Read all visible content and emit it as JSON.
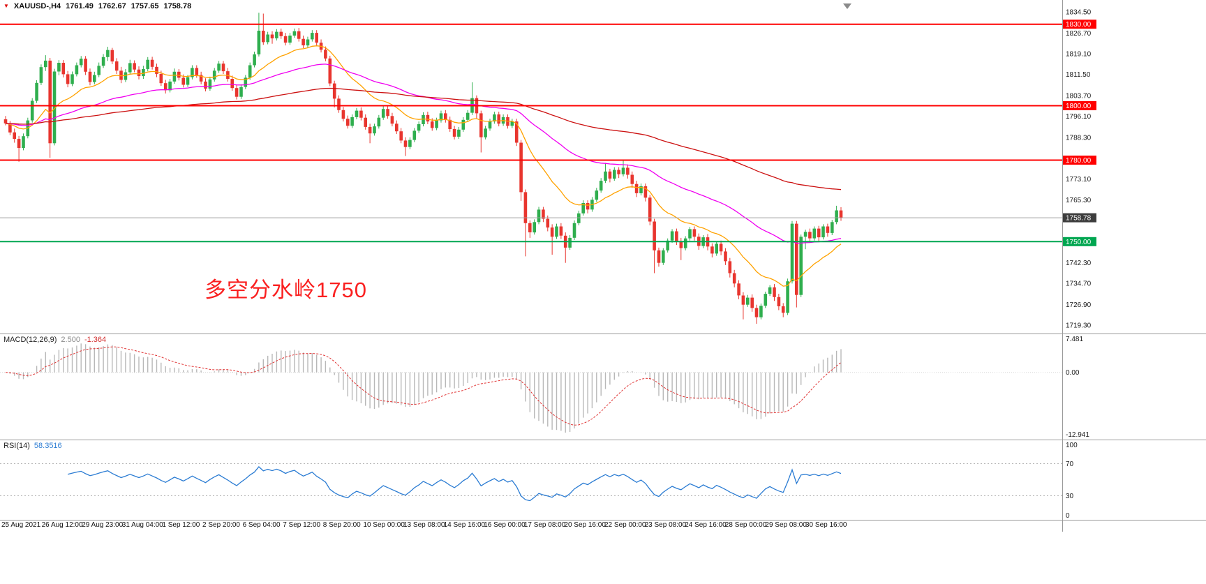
{
  "window": {
    "title": "XAUUSD-,H4",
    "bg": "#ffffff"
  },
  "header": {
    "icon": "▼",
    "symbol_period": "XAUUSD-,H4",
    "ohlc": {
      "open": "1761.49",
      "high": "1762.67",
      "low": "1757.65",
      "close": "1758.78"
    }
  },
  "annotation": {
    "text": "多空分水岭1750",
    "color": "#fa2020"
  },
  "colors": {
    "bull": "#2fae4e",
    "bear": "#e8352e",
    "ma_fast": "#ffa200",
    "ma_mid": "#f000f0",
    "ma_slow": "#cc1111",
    "resistance": "#ff0000",
    "support": "#00a650",
    "bid_line": "#a0a0a0",
    "bid_box": "#3d3d3d",
    "macd_hist": "#b8b8b8",
    "macd_signal": "#e03131",
    "rsi_line": "#2b7cd3",
    "separator": "#9a9a9a",
    "axis_text": "#1a1a1a"
  },
  "price_axis": {
    "labels": [
      "1834.50",
      "1826.70",
      "1819.10",
      "1811.50",
      "1803.70",
      "1796.10",
      "1788.30",
      "1773.10",
      "1765.30",
      "1742.30",
      "1734.70",
      "1726.90",
      "1719.30"
    ],
    "label_values": [
      1834.5,
      1826.7,
      1819.1,
      1811.5,
      1803.7,
      1796.1,
      1788.3,
      1773.1,
      1765.3,
      1742.3,
      1734.7,
      1726.9,
      1719.3
    ],
    "boxes": [
      {
        "label": "1830.00",
        "value": 1830.0,
        "bg": "#ff0000"
      },
      {
        "label": "1800.00",
        "value": 1800.0,
        "bg": "#ff0000"
      },
      {
        "label": "1780.00",
        "value": 1780.0,
        "bg": "#ff0000"
      },
      {
        "label": "1758.78",
        "value": 1758.78,
        "bg": "#3d3d3d"
      },
      {
        "label": "1750.00",
        "value": 1750.0,
        "bg": "#00a650"
      }
    ],
    "range": {
      "max": 1838.9,
      "min": 1716.2
    }
  },
  "indicators": {
    "macd": {
      "label": "MACD(12,26,9)",
      "value_main": "2.500",
      "value_signal": "-1.364",
      "fast": 12,
      "slow": 26,
      "signal": 9,
      "axis_labels": [
        "7.481",
        "0.00",
        "-12.941"
      ],
      "range": {
        "max": 7.481,
        "min": -12.941
      }
    },
    "rsi": {
      "label": "RSI(14)",
      "value": "58.3516",
      "period": 14,
      "axis_labels": [
        "100",
        "70",
        "30",
        "0"
      ],
      "levels": [
        70,
        30
      ],
      "range": {
        "max": 100,
        "min": 0
      }
    }
  },
  "time_axis": {
    "labels": [
      "25 Aug 2021",
      "26 Aug 12:00",
      "29 Aug 23:00",
      "31 Aug 04:00",
      "1 Sep 12:00",
      "2 Sep 20:00",
      "6 Sep 04:00",
      "7 Sep 12:00",
      "8 Sep 20:00",
      "10 Sep 00:00",
      "13 Sep 08:00",
      "14 Sep 16:00",
      "16 Sep 00:00",
      "17 Sep 08:00",
      "20 Sep 16:00",
      "22 Sep 00:00",
      "23 Sep 08:00",
      "24 Sep 16:00",
      "28 Sep 00:00",
      "29 Sep 08:00",
      "30 Sep 16:00"
    ]
  },
  "chart_data": {
    "type": "candlestick",
    "title": "XAUUSD-,H4",
    "symbol": "XAUUSD-",
    "timeframe": "H4",
    "current_price": 1758.78,
    "hlines": [
      {
        "value": 1830.0,
        "label": "1830.00",
        "color": "#ff0000"
      },
      {
        "value": 1800.0,
        "label": "1800.00",
        "color": "#ff0000"
      },
      {
        "value": 1780.0,
        "label": "1780.00",
        "color": "#ff0000"
      },
      {
        "value": 1750.0,
        "label": "1750.00",
        "color": "#00a650"
      }
    ],
    "overlays": [
      {
        "type": "ema",
        "period": 18,
        "color": "#ffa200"
      },
      {
        "type": "ema",
        "period": 55,
        "color": "#f000f0"
      },
      {
        "type": "ema",
        "period": 150,
        "color": "#cc1111"
      }
    ],
    "candles": [
      [
        1795.0,
        1796.2,
        1792.8,
        1793.5
      ],
      [
        1793.5,
        1794.4,
        1789.2,
        1790.2
      ],
      [
        1790.2,
        1791.6,
        1786.4,
        1787.8
      ],
      [
        1787.8,
        1788.9,
        1779.4,
        1784.5
      ],
      [
        1784.5,
        1789.8,
        1783.6,
        1788.8
      ],
      [
        1788.8,
        1795.6,
        1788.0,
        1794.6
      ],
      [
        1794.6,
        1802.8,
        1793.8,
        1801.8
      ],
      [
        1801.8,
        1809.4,
        1801.0,
        1808.4
      ],
      [
        1808.4,
        1815.2,
        1807.6,
        1814.2
      ],
      [
        1814.2,
        1818.6,
        1812.8,
        1816.6
      ],
      [
        1816.6,
        1817.6,
        1780.8,
        1786.2
      ],
      [
        1786.2,
        1813.6,
        1785.4,
        1812.6
      ],
      [
        1812.6,
        1816.8,
        1811.2,
        1815.8
      ],
      [
        1815.8,
        1816.8,
        1810.4,
        1811.6
      ],
      [
        1811.6,
        1812.8,
        1806.8,
        1808.0
      ],
      [
        1808.0,
        1812.6,
        1807.2,
        1811.6
      ],
      [
        1811.6,
        1815.9,
        1810.8,
        1814.9
      ],
      [
        1814.9,
        1818.3,
        1814.1,
        1817.3
      ],
      [
        1817.3,
        1818.3,
        1811.3,
        1812.5
      ],
      [
        1812.5,
        1813.7,
        1807.5,
        1808.7
      ],
      [
        1808.7,
        1812.5,
        1807.9,
        1811.3
      ],
      [
        1811.3,
        1815.9,
        1810.5,
        1814.7
      ],
      [
        1814.7,
        1819.0,
        1813.9,
        1817.9
      ],
      [
        1817.9,
        1821.7,
        1816.5,
        1820.5
      ],
      [
        1820.5,
        1821.3,
        1815.3,
        1816.3
      ],
      [
        1816.3,
        1817.5,
        1811.7,
        1812.9
      ],
      [
        1812.9,
        1814.3,
        1808.3,
        1809.5
      ],
      [
        1809.5,
        1813.5,
        1808.7,
        1812.3
      ],
      [
        1812.3,
        1816.9,
        1811.5,
        1815.7
      ],
      [
        1815.7,
        1816.7,
        1812.3,
        1813.3
      ],
      [
        1813.3,
        1814.5,
        1809.7,
        1810.9
      ],
      [
        1810.9,
        1814.7,
        1809.9,
        1813.5
      ],
      [
        1813.5,
        1817.9,
        1812.7,
        1816.9
      ],
      [
        1816.9,
        1818.0,
        1813.3,
        1814.3
      ],
      [
        1814.3,
        1815.5,
        1810.5,
        1811.7
      ],
      [
        1811.7,
        1812.9,
        1807.3,
        1808.3
      ],
      [
        1808.3,
        1809.5,
        1804.5,
        1805.7
      ],
      [
        1805.7,
        1809.9,
        1804.9,
        1808.9
      ],
      [
        1808.9,
        1813.7,
        1808.1,
        1812.5
      ],
      [
        1812.5,
        1813.5,
        1809.3,
        1810.3
      ],
      [
        1810.3,
        1811.5,
        1806.7,
        1807.7
      ],
      [
        1807.7,
        1811.3,
        1806.9,
        1810.5
      ],
      [
        1810.5,
        1814.9,
        1809.7,
        1813.9
      ],
      [
        1813.9,
        1814.9,
        1810.3,
        1811.3
      ],
      [
        1811.3,
        1812.5,
        1807.9,
        1808.9
      ],
      [
        1808.9,
        1810.1,
        1805.3,
        1806.3
      ],
      [
        1806.3,
        1810.7,
        1805.5,
        1809.7
      ],
      [
        1809.7,
        1813.9,
        1808.9,
        1812.9
      ],
      [
        1812.9,
        1816.5,
        1812.1,
        1815.5
      ],
      [
        1815.5,
        1816.5,
        1811.7,
        1812.7
      ],
      [
        1812.7,
        1813.9,
        1808.9,
        1809.9
      ],
      [
        1809.9,
        1811.1,
        1805.5,
        1806.5
      ],
      [
        1806.5,
        1807.7,
        1802.3,
        1803.3
      ],
      [
        1803.3,
        1807.9,
        1802.5,
        1806.9
      ],
      [
        1806.9,
        1811.3,
        1806.1,
        1810.3
      ],
      [
        1810.3,
        1815.9,
        1809.5,
        1814.9
      ],
      [
        1814.9,
        1819.9,
        1814.1,
        1818.9
      ],
      [
        1818.9,
        1834.2,
        1818.1,
        1827.6
      ],
      [
        1827.6,
        1833.9,
        1822.4,
        1823.4
      ],
      [
        1823.4,
        1827.2,
        1822.6,
        1826.2
      ],
      [
        1826.2,
        1827.4,
        1822.8,
        1824.8
      ],
      [
        1824.8,
        1828.2,
        1824.0,
        1827.2
      ],
      [
        1827.2,
        1828.4,
        1824.6,
        1825.6
      ],
      [
        1825.6,
        1826.8,
        1822.2,
        1823.2
      ],
      [
        1823.2,
        1826.8,
        1822.4,
        1825.8
      ],
      [
        1825.8,
        1828.4,
        1825.0,
        1827.4
      ],
      [
        1827.4,
        1828.6,
        1823.6,
        1824.6
      ],
      [
        1824.6,
        1825.8,
        1821.2,
        1822.2
      ],
      [
        1822.2,
        1825.4,
        1821.4,
        1824.4
      ],
      [
        1824.4,
        1827.8,
        1823.6,
        1826.8
      ],
      [
        1826.8,
        1827.8,
        1822.2,
        1823.2
      ],
      [
        1823.2,
        1824.4,
        1819.6,
        1820.6
      ],
      [
        1820.6,
        1821.8,
        1816.4,
        1817.4
      ],
      [
        1817.4,
        1818.4,
        1807.2,
        1808.2
      ],
      [
        1808.2,
        1809.2,
        1799.4,
        1802.6
      ],
      [
        1802.6,
        1803.8,
        1797.4,
        1798.4
      ],
      [
        1798.4,
        1799.6,
        1794.2,
        1795.2
      ],
      [
        1795.2,
        1796.4,
        1791.6,
        1792.6
      ],
      [
        1792.6,
        1796.8,
        1791.8,
        1795.8
      ],
      [
        1795.8,
        1799.2,
        1795.0,
        1798.2
      ],
      [
        1798.2,
        1799.4,
        1794.6,
        1795.6
      ],
      [
        1795.6,
        1796.8,
        1791.2,
        1792.2
      ],
      [
        1792.2,
        1793.4,
        1786.2,
        1789.8
      ],
      [
        1789.8,
        1793.4,
        1789.0,
        1792.4
      ],
      [
        1792.4,
        1796.6,
        1791.6,
        1795.6
      ],
      [
        1795.6,
        1799.8,
        1794.8,
        1798.8
      ],
      [
        1798.8,
        1799.8,
        1795.2,
        1796.2
      ],
      [
        1796.2,
        1797.4,
        1792.4,
        1793.4
      ],
      [
        1793.4,
        1794.6,
        1789.6,
        1790.6
      ],
      [
        1790.6,
        1791.8,
        1786.2,
        1787.2
      ],
      [
        1787.2,
        1788.4,
        1781.5,
        1784.8
      ],
      [
        1784.8,
        1788.4,
        1784.0,
        1787.4
      ],
      [
        1787.4,
        1791.8,
        1786.6,
        1790.8
      ],
      [
        1790.8,
        1794.2,
        1790.0,
        1793.2
      ],
      [
        1793.2,
        1797.6,
        1792.4,
        1796.6
      ],
      [
        1796.6,
        1797.8,
        1793.2,
        1794.2
      ],
      [
        1794.2,
        1795.4,
        1790.8,
        1791.8
      ],
      [
        1791.8,
        1795.6,
        1791.0,
        1794.6
      ],
      [
        1794.6,
        1798.2,
        1793.8,
        1797.2
      ],
      [
        1797.2,
        1798.4,
        1793.8,
        1794.8
      ],
      [
        1794.8,
        1796.0,
        1790.4,
        1791.4
      ],
      [
        1791.4,
        1792.6,
        1787.6,
        1788.6
      ],
      [
        1788.6,
        1792.2,
        1787.8,
        1791.2
      ],
      [
        1791.2,
        1795.8,
        1790.4,
        1794.8
      ],
      [
        1794.8,
        1798.4,
        1794.0,
        1797.4
      ],
      [
        1797.4,
        1808.6,
        1796.6,
        1802.8
      ],
      [
        1802.8,
        1803.8,
        1795.4,
        1797.2
      ],
      [
        1797.2,
        1798.2,
        1782.8,
        1788.4
      ],
      [
        1788.4,
        1792.6,
        1787.6,
        1791.6
      ],
      [
        1791.6,
        1795.2,
        1790.8,
        1794.2
      ],
      [
        1794.2,
        1797.8,
        1793.4,
        1796.8
      ],
      [
        1796.8,
        1797.8,
        1792.4,
        1793.4
      ],
      [
        1793.4,
        1796.8,
        1792.6,
        1795.8
      ],
      [
        1795.8,
        1796.8,
        1791.6,
        1792.6
      ],
      [
        1792.6,
        1795.2,
        1791.8,
        1794.2
      ],
      [
        1794.2,
        1795.2,
        1785.2,
        1786.4
      ],
      [
        1786.4,
        1787.4,
        1765.0,
        1768.2
      ],
      [
        1768.2,
        1769.2,
        1744.6,
        1756.8
      ],
      [
        1756.8,
        1757.8,
        1751.4,
        1753.4
      ],
      [
        1753.4,
        1758.2,
        1752.6,
        1757.2
      ],
      [
        1757.2,
        1762.8,
        1756.4,
        1761.8
      ],
      [
        1761.8,
        1762.8,
        1757.2,
        1758.4
      ],
      [
        1758.4,
        1759.6,
        1753.8,
        1755.2
      ],
      [
        1755.2,
        1756.4,
        1745.2,
        1751.8
      ],
      [
        1751.8,
        1756.6,
        1751.0,
        1755.6
      ],
      [
        1755.6,
        1756.8,
        1751.0,
        1752.2
      ],
      [
        1752.2,
        1753.4,
        1742.2,
        1747.8
      ],
      [
        1747.8,
        1752.4,
        1747.0,
        1751.4
      ],
      [
        1751.4,
        1757.8,
        1750.6,
        1756.8
      ],
      [
        1756.8,
        1761.4,
        1756.0,
        1760.4
      ],
      [
        1760.4,
        1765.2,
        1759.6,
        1764.2
      ],
      [
        1764.2,
        1765.2,
        1760.4,
        1761.8
      ],
      [
        1761.8,
        1766.4,
        1761.0,
        1765.4
      ],
      [
        1765.4,
        1769.8,
        1764.6,
        1768.8
      ],
      [
        1768.8,
        1773.4,
        1768.0,
        1772.4
      ],
      [
        1772.4,
        1779.0,
        1771.6,
        1775.8
      ],
      [
        1775.8,
        1776.8,
        1771.8,
        1773.2
      ],
      [
        1773.2,
        1777.4,
        1772.4,
        1776.4
      ],
      [
        1776.4,
        1777.4,
        1773.4,
        1774.8
      ],
      [
        1774.8,
        1780.1,
        1774.0,
        1777.2
      ],
      [
        1777.2,
        1778.4,
        1773.2,
        1774.6
      ],
      [
        1774.6,
        1775.8,
        1769.8,
        1771.2
      ],
      [
        1771.2,
        1772.4,
        1766.4,
        1767.8
      ],
      [
        1767.8,
        1771.4,
        1767.0,
        1770.4
      ],
      [
        1770.4,
        1771.4,
        1764.8,
        1766.2
      ],
      [
        1766.2,
        1767.2,
        1756.0,
        1757.4
      ],
      [
        1757.4,
        1758.4,
        1738.4,
        1746.8
      ],
      [
        1746.8,
        1747.8,
        1740.8,
        1742.2
      ],
      [
        1742.2,
        1747.6,
        1741.4,
        1746.8
      ],
      [
        1746.8,
        1751.2,
        1746.0,
        1750.4
      ],
      [
        1750.4,
        1754.6,
        1749.6,
        1753.8
      ],
      [
        1753.8,
        1754.8,
        1748.8,
        1750.2
      ],
      [
        1750.2,
        1751.4,
        1743.2,
        1747.6
      ],
      [
        1747.6,
        1752.0,
        1746.8,
        1751.2
      ],
      [
        1751.2,
        1755.4,
        1750.4,
        1754.6
      ],
      [
        1754.6,
        1755.6,
        1750.4,
        1751.8
      ],
      [
        1751.8,
        1753.0,
        1747.0,
        1748.4
      ],
      [
        1748.4,
        1752.4,
        1747.6,
        1751.6
      ],
      [
        1751.6,
        1752.8,
        1746.8,
        1748.2
      ],
      [
        1748.2,
        1749.4,
        1744.2,
        1745.6
      ],
      [
        1745.6,
        1750.0,
        1744.8,
        1749.2
      ],
      [
        1749.2,
        1750.4,
        1745.0,
        1746.4
      ],
      [
        1746.4,
        1747.6,
        1741.4,
        1742.8
      ],
      [
        1742.8,
        1744.0,
        1736.8,
        1738.4
      ],
      [
        1738.4,
        1739.6,
        1733.2,
        1734.6
      ],
      [
        1734.6,
        1735.8,
        1728.8,
        1730.2
      ],
      [
        1730.2,
        1731.4,
        1721.4,
        1726.8
      ],
      [
        1726.8,
        1730.4,
        1726.0,
        1729.4
      ],
      [
        1729.4,
        1730.6,
        1724.2,
        1725.6
      ],
      [
        1725.6,
        1726.8,
        1719.8,
        1722.2
      ],
      [
        1722.2,
        1727.2,
        1721.4,
        1726.4
      ],
      [
        1726.4,
        1731.6,
        1725.6,
        1730.8
      ],
      [
        1730.8,
        1734.0,
        1730.0,
        1733.2
      ],
      [
        1733.2,
        1734.4,
        1728.2,
        1729.6
      ],
      [
        1729.6,
        1730.8,
        1724.8,
        1726.2
      ],
      [
        1726.2,
        1727.4,
        1722.2,
        1723.8
      ],
      [
        1723.8,
        1736.4,
        1723.0,
        1735.4
      ],
      [
        1735.4,
        1757.6,
        1734.6,
        1756.6
      ],
      [
        1756.6,
        1757.6,
        1725.8,
        1730.4
      ],
      [
        1730.4,
        1752.6,
        1729.6,
        1751.8
      ],
      [
        1751.8,
        1754.4,
        1747.2,
        1753.6
      ],
      [
        1753.6,
        1754.8,
        1749.8,
        1751.2
      ],
      [
        1751.2,
        1755.6,
        1750.4,
        1754.8
      ],
      [
        1754.8,
        1755.8,
        1750.2,
        1751.6
      ],
      [
        1751.6,
        1756.4,
        1750.8,
        1755.6
      ],
      [
        1755.6,
        1756.6,
        1751.8,
        1753.2
      ],
      [
        1753.2,
        1758.0,
        1752.4,
        1757.2
      ],
      [
        1757.2,
        1763.2,
        1756.4,
        1761.5
      ],
      [
        1761.49,
        1762.67,
        1757.65,
        1758.78
      ]
    ]
  }
}
